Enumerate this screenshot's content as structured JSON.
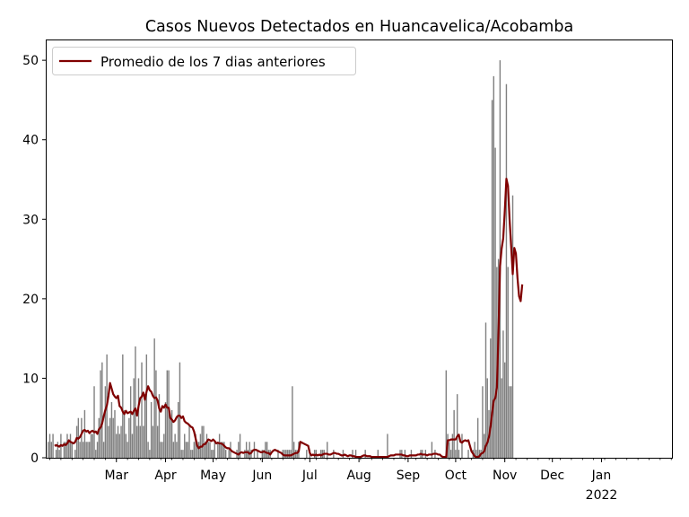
{
  "chart_data": {
    "type": "bar",
    "title": "Casos Nuevos Detectados en Huancavelica/Acobamba",
    "xlabel": "",
    "ylabel": "",
    "ylim": [
      0,
      52.5
    ],
    "yticks": [
      0,
      10,
      20,
      30,
      40,
      50
    ],
    "x_start_date": "2021-01-16",
    "x_end_date": "2022-02-15",
    "xticks": [
      {
        "date": "2021-03-01",
        "label": "Mar",
        "sublabel": ""
      },
      {
        "date": "2021-04-01",
        "label": "Apr",
        "sublabel": ""
      },
      {
        "date": "2021-05-01",
        "label": "May",
        "sublabel": ""
      },
      {
        "date": "2021-06-01",
        "label": "Jun",
        "sublabel": ""
      },
      {
        "date": "2021-07-01",
        "label": "Jul",
        "sublabel": ""
      },
      {
        "date": "2021-08-01",
        "label": "Aug",
        "sublabel": ""
      },
      {
        "date": "2021-09-01",
        "label": "Sep",
        "sublabel": ""
      },
      {
        "date": "2021-10-01",
        "label": "Oct",
        "sublabel": ""
      },
      {
        "date": "2021-11-01",
        "label": "Nov",
        "sublabel": ""
      },
      {
        "date": "2021-12-01",
        "label": "Dec",
        "sublabel": ""
      },
      {
        "date": "2022-01-01",
        "label": "Jan",
        "sublabel": "2022"
      }
    ],
    "grid": false,
    "legend_position": "top-left",
    "series": [
      {
        "name": "",
        "kind": "bar",
        "color": "#808080",
        "start_date": "2021-01-17",
        "values": [
          2,
          3,
          2,
          3,
          0,
          1,
          2,
          1,
          3,
          0,
          2,
          2,
          3,
          2,
          3,
          2,
          0,
          1,
          4,
          5,
          2,
          5,
          2,
          6,
          2,
          2,
          2,
          3,
          3,
          9,
          1,
          2,
          5,
          11,
          12,
          2,
          9,
          13,
          4,
          5,
          7,
          5,
          6,
          3,
          4,
          3,
          4,
          13,
          6,
          3,
          2,
          5,
          9,
          3,
          10,
          14,
          4,
          10,
          4,
          12,
          4,
          8,
          13,
          2,
          1,
          7,
          4,
          15,
          11,
          4,
          8,
          2,
          2,
          3,
          7,
          11,
          11,
          5,
          6,
          2,
          3,
          2,
          7,
          12,
          1,
          1,
          3,
          2,
          2,
          4,
          1,
          1,
          2,
          3,
          2,
          2,
          3,
          4,
          4,
          2,
          3,
          2,
          2,
          1,
          1,
          2,
          0,
          2,
          3,
          2,
          2,
          2,
          1,
          0,
          1,
          2,
          0,
          0,
          0,
          1,
          2,
          3,
          0,
          0,
          1,
          2,
          1,
          2,
          1,
          0,
          2,
          0,
          1,
          0,
          0,
          1,
          1,
          2,
          2,
          1,
          1,
          0,
          0,
          0,
          0,
          1,
          0,
          0,
          1,
          1,
          1,
          1,
          1,
          1,
          9,
          2,
          1,
          1,
          2,
          0,
          0,
          0,
          0,
          1,
          0,
          1,
          0,
          0,
          1,
          1,
          0,
          0,
          1,
          1,
          1,
          0,
          2,
          0,
          0,
          0,
          1,
          0,
          0,
          0,
          0,
          0,
          1,
          0,
          0,
          0,
          0,
          0,
          1,
          0,
          1,
          0,
          0,
          0,
          0,
          0,
          1,
          0,
          0,
          0,
          0,
          0,
          0,
          0,
          1,
          0,
          0,
          0,
          0,
          0,
          3,
          0,
          0,
          0,
          0,
          0,
          0,
          0,
          1,
          1,
          0,
          1,
          0,
          0,
          0,
          1,
          0,
          0,
          0,
          0,
          0,
          1,
          1,
          0,
          1,
          0,
          0,
          0,
          2,
          0,
          1,
          0,
          0,
          0,
          0,
          0,
          0,
          11,
          3,
          2,
          1,
          3,
          6,
          1,
          8,
          1,
          0,
          3,
          0,
          0,
          0,
          1,
          0,
          0,
          1,
          2,
          1,
          5,
          1,
          1,
          9,
          3,
          17,
          10,
          6,
          15,
          45,
          48,
          39,
          24,
          25,
          50,
          10,
          16,
          12,
          47,
          24,
          9,
          9,
          33
        ]
      },
      {
        "name": "Promedio de los 7 dias anteriores",
        "kind": "line",
        "color": "#800000",
        "start_date": "2021-01-21",
        "values": [
          1.5,
          1.6,
          1.5,
          1.4,
          1.6,
          1.5,
          1.7,
          1.6,
          1.8,
          2.2,
          2.0,
          1.9,
          1.8,
          2.0,
          2.5,
          2.4,
          2.6,
          3.0,
          3.4,
          3.5,
          3.3,
          3.4,
          3.1,
          3.3,
          3.4,
          3.2,
          3.3,
          3.0,
          3.6,
          3.8,
          4.3,
          5.2,
          6.0,
          6.6,
          7.8,
          9.4,
          8.7,
          8.0,
          7.7,
          7.5,
          7.8,
          6.5,
          6.3,
          5.8,
          5.5,
          5.9,
          5.6,
          5.7,
          5.8,
          5.5,
          5.9,
          6.2,
          5.3,
          6.5,
          7.5,
          7.7,
          8.2,
          7.3,
          8.3,
          9.0,
          8.5,
          8.3,
          7.8,
          7.5,
          7.6,
          7.2,
          6.2,
          5.8,
          6.5,
          6.3,
          6.7,
          6.3,
          6.3,
          5.0,
          4.8,
          4.5,
          4.7,
          5.1,
          5.3,
          5.3,
          5.0,
          5.2,
          4.6,
          4.4,
          4.3,
          4.1,
          3.9,
          3.8,
          3.3,
          2.4,
          1.5,
          1.2,
          1.4,
          1.4,
          1.7,
          1.7,
          2.0,
          2.3,
          2.2,
          2.1,
          2.3,
          2.1,
          1.8,
          1.9,
          1.8,
          1.8,
          1.7,
          1.5,
          1.3,
          1.2,
          1.2,
          1.0,
          0.8,
          0.7,
          0.6,
          0.5,
          0.4,
          0.6,
          0.7,
          0.6,
          0.7,
          0.7,
          0.7,
          0.5,
          0.6,
          0.9,
          1.0,
          1.0,
          0.9,
          0.8,
          0.7,
          0.7,
          0.8,
          0.7,
          0.6,
          0.6,
          0.4,
          0.7,
          0.9,
          1.0,
          0.9,
          0.8,
          0.7,
          0.6,
          0.4,
          0.3,
          0.3,
          0.3,
          0.3,
          0.3,
          0.4,
          0.5,
          0.6,
          0.6,
          0.8,
          2.0,
          1.9,
          1.8,
          1.7,
          1.6,
          1.5,
          0.6,
          0.3,
          0.4,
          0.3,
          0.4,
          0.3,
          0.4,
          0.3,
          0.4,
          0.5,
          0.5,
          0.5,
          0.4,
          0.4,
          0.5,
          0.6,
          0.6,
          0.5,
          0.5,
          0.4,
          0.3,
          0.3,
          0.4,
          0.3,
          0.2,
          0.3,
          0.3,
          0.2,
          0.2,
          0.1,
          0.1,
          0.1,
          0.1,
          0.2,
          0.3,
          0.3,
          0.2,
          0.2,
          0.2,
          0.1,
          0.1,
          0.1,
          0.1,
          0.1,
          0.1,
          0.1,
          0.1,
          0.1,
          0.1,
          0.1,
          0.2,
          0.3,
          0.3,
          0.3,
          0.4,
          0.4,
          0.4,
          0.4,
          0.4,
          0.3,
          0.3,
          0.2,
          0.2,
          0.3,
          0.3,
          0.3,
          0.3,
          0.3,
          0.4,
          0.4,
          0.5,
          0.4,
          0.4,
          0.4,
          0.3,
          0.4,
          0.4,
          0.4,
          0.5,
          0.5,
          0.5,
          0.4,
          0.4,
          0.2,
          0.1,
          0.1,
          0.1,
          2.2,
          2.2,
          2.3,
          2.3,
          2.3,
          2.3,
          2.7,
          2.9,
          2.0,
          1.9,
          2.1,
          2.2,
          2.1,
          2.2,
          1.5,
          0.8,
          0.5,
          0.2,
          0.1,
          0.1,
          0.2,
          0.5,
          0.6,
          0.8,
          1.5,
          1.9,
          2.6,
          3.9,
          5.6,
          7.2,
          7.5,
          8.8,
          15.6,
          24.1,
          26.3,
          27.6,
          31.1,
          35.1,
          34.2,
          30.0,
          26.6,
          23.1,
          26.4,
          25.7,
          22.6,
          20.3,
          19.7,
          21.8
        ]
      }
    ]
  }
}
